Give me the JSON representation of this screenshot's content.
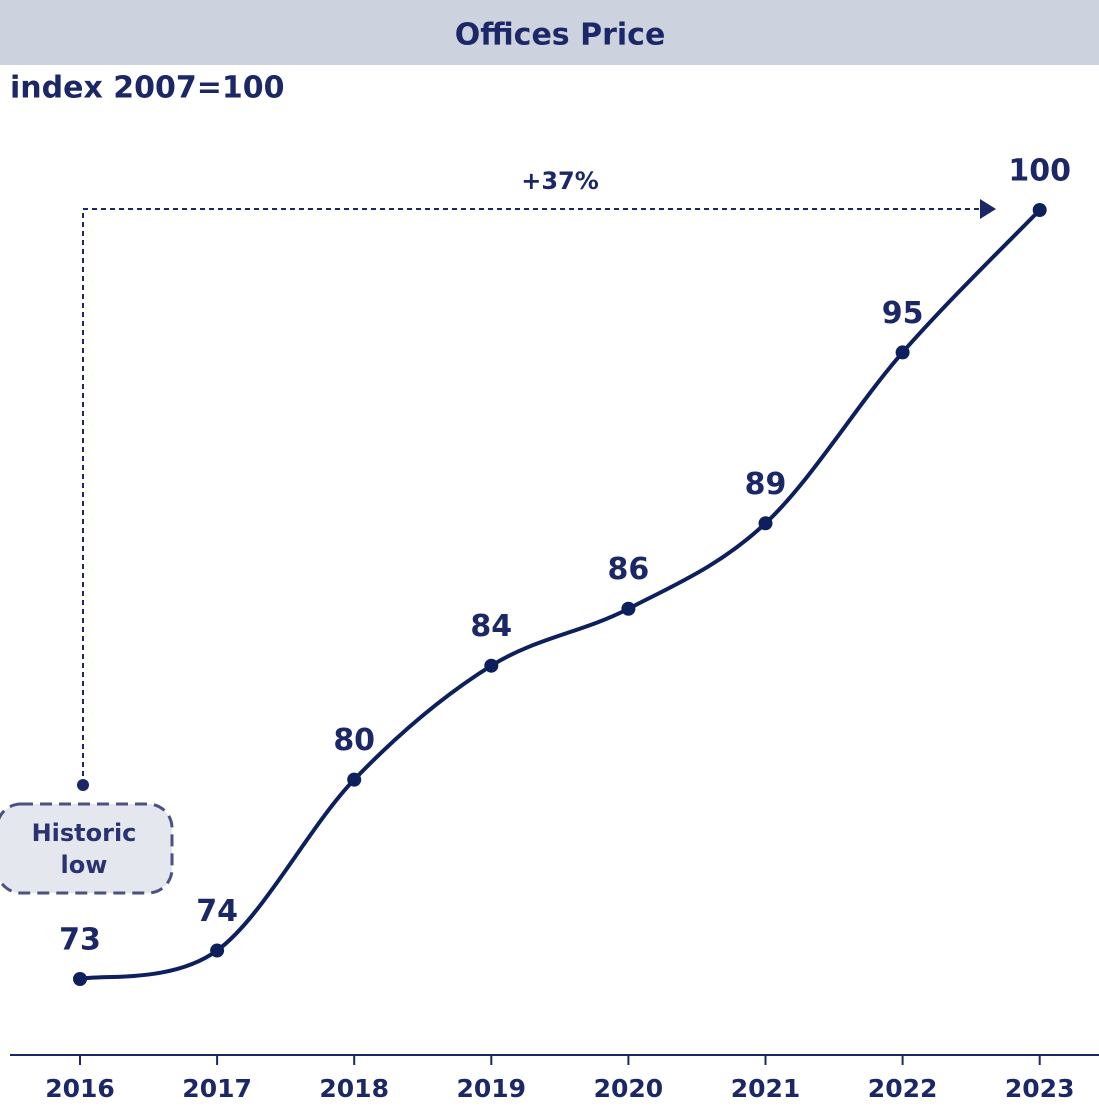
{
  "chart_data": {
    "type": "line",
    "title": "Offices Price",
    "subtitle": "index 2007=100",
    "categories": [
      "2016",
      "2017",
      "2018",
      "2019",
      "2020",
      "2021",
      "2022",
      "2023"
    ],
    "series": [
      {
        "name": "Offices Price",
        "color": "#0d1f5c",
        "values": [
          73,
          74,
          80,
          84,
          86,
          89,
          95,
          100
        ]
      }
    ],
    "annotations": [
      "+37%",
      "Historic low"
    ]
  }
}
